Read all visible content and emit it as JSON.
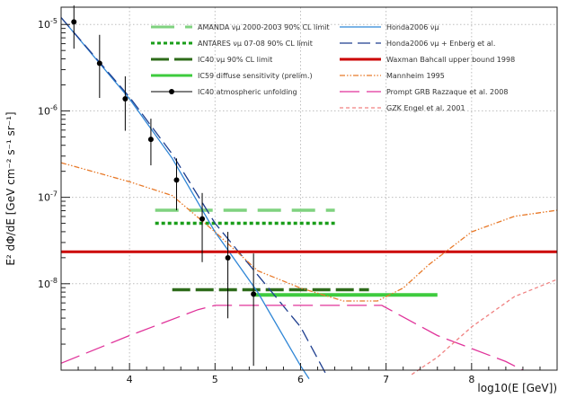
{
  "chart_data": {
    "type": "line",
    "title": "",
    "xlabel": "log10(E [GeV])",
    "ylabel": "E² dΦ/dE [GeV cm⁻² s⁻¹ sr⁻¹]",
    "xlim": [
      3.2,
      9.0
    ],
    "ylim_log10": [
      -9.0,
      -4.8
    ],
    "yscale": "log",
    "grid": true,
    "legend_placement": "top",
    "x_ticks": [
      {
        "value": 4,
        "label": "4"
      },
      {
        "value": 5,
        "label": "5"
      },
      {
        "value": 6,
        "label": "6"
      },
      {
        "value": 7,
        "label": "7"
      },
      {
        "value": 8,
        "label": "8"
      }
    ],
    "y_ticks": [
      {
        "value": -5,
        "base": "10",
        "exp": "-5"
      },
      {
        "value": -6,
        "base": "10",
        "exp": "-6"
      },
      {
        "value": -7,
        "base": "10",
        "exp": "-7"
      },
      {
        "value": -8,
        "base": "10",
        "exp": "-8"
      }
    ],
    "series": [
      {
        "name": "AMANDA νμ 2000-2003 90% CL limit",
        "color": "#7fd27f",
        "dash": "26,12",
        "width": 3.5,
        "points": [
          [
            4.3,
            -7.15
          ],
          [
            6.4,
            -7.15
          ]
        ]
      },
      {
        "name": "ANTARES νμ 07-08 90% CL limit",
        "color": "#1a9e1a",
        "dash": "4,3",
        "width": 3.5,
        "points": [
          [
            4.3,
            -7.3
          ],
          [
            6.4,
            -7.3
          ]
        ]
      },
      {
        "name": "IC40 νμ 90% CL limit",
        "color": "#2e6b1a",
        "dash": "20,6",
        "width": 3.5,
        "points": [
          [
            4.5,
            -8.07
          ],
          [
            6.8,
            -8.07
          ]
        ]
      },
      {
        "name": "IC59 diffuse sensitivity (prelim.)",
        "color": "#3ecb3e",
        "dash": "",
        "width": 4,
        "points": [
          [
            5.45,
            -8.13
          ],
          [
            7.6,
            -8.13
          ]
        ]
      },
      {
        "name": "Honda2006 νμ",
        "color": "#2f86d6",
        "dash": "",
        "width": 1.3,
        "points": [
          [
            3.2,
            -4.92
          ],
          [
            4.0,
            -5.86
          ],
          [
            4.5,
            -6.55
          ],
          [
            5.0,
            -7.4
          ],
          [
            5.5,
            -8.1
          ],
          [
            6.0,
            -8.95
          ],
          [
            6.1,
            -9.1
          ]
        ]
      },
      {
        "name": "Honda2006 νμ + Enberg et al.",
        "color": "#1f3f8f",
        "dash": "14,6",
        "width": 1.3,
        "points": [
          [
            3.2,
            -4.92
          ],
          [
            4.0,
            -5.84
          ],
          [
            4.5,
            -6.5
          ],
          [
            5.0,
            -7.3
          ],
          [
            5.5,
            -7.9
          ],
          [
            6.0,
            -8.5
          ],
          [
            6.3,
            -9.05
          ]
        ]
      },
      {
        "name": "Waxman Bahcall upper bound 1998",
        "color": "#cc0000",
        "dash": "",
        "width": 3,
        "points": [
          [
            3.2,
            -7.63
          ],
          [
            9.0,
            -7.63
          ]
        ]
      },
      {
        "name": "Mannheim 1995",
        "color": "#e87a2a",
        "dash": "6,2,1.5,2,1.5,2",
        "width": 1.3,
        "points": [
          [
            3.2,
            -6.6
          ],
          [
            4.0,
            -6.82
          ],
          [
            4.5,
            -6.98
          ],
          [
            5.0,
            -7.4
          ],
          [
            5.5,
            -7.85
          ],
          [
            6.0,
            -8.05
          ],
          [
            6.5,
            -8.2
          ],
          [
            6.9,
            -8.2
          ],
          [
            7.2,
            -8.05
          ],
          [
            7.5,
            -7.78
          ],
          [
            8.0,
            -7.4
          ],
          [
            8.5,
            -7.22
          ],
          [
            9.0,
            -7.15
          ]
        ]
      },
      {
        "name": "Prompt GRB Razzaque et al. 2008",
        "color": "#e0339a",
        "dash": "22,8",
        "width": 1.3,
        "points": [
          [
            3.2,
            -8.92
          ],
          [
            4.0,
            -8.6
          ],
          [
            4.8,
            -8.3
          ],
          [
            5.0,
            -8.25
          ],
          [
            6.95,
            -8.25
          ],
          [
            7.6,
            -8.6
          ],
          [
            8.4,
            -8.9
          ],
          [
            8.6,
            -9.0
          ]
        ]
      },
      {
        "name": "GZK Engel et al. 2001",
        "color": "#f08080",
        "dash": "4,3",
        "width": 1.3,
        "points": [
          [
            7.3,
            -9.05
          ],
          [
            7.6,
            -8.85
          ],
          [
            8.0,
            -8.5
          ],
          [
            8.5,
            -8.15
          ],
          [
            9.0,
            -7.95
          ]
        ]
      }
    ],
    "atmospheric_data": {
      "name": "IC40 atmospheric unfolding",
      "color": "#000000",
      "points": [
        {
          "x": 3.35,
          "y": -4.97,
          "lo": -5.28,
          "hi": -4.78
        },
        {
          "x": 3.65,
          "y": -5.45,
          "lo": -5.85,
          "hi": -5.12
        },
        {
          "x": 3.95,
          "y": -5.86,
          "lo": -6.23,
          "hi": -5.6
        },
        {
          "x": 4.25,
          "y": -6.33,
          "lo": -6.63,
          "hi": -6.09
        },
        {
          "x": 4.55,
          "y": -6.8,
          "lo": -7.15,
          "hi": -6.55
        },
        {
          "x": 4.85,
          "y": -7.25,
          "lo": -7.75,
          "hi": -6.95
        },
        {
          "x": 5.15,
          "y": -7.7,
          "lo": -8.4,
          "hi": -7.4
        },
        {
          "x": 5.45,
          "y": -8.12,
          "lo": -8.95,
          "hi": -7.65
        }
      ]
    }
  }
}
